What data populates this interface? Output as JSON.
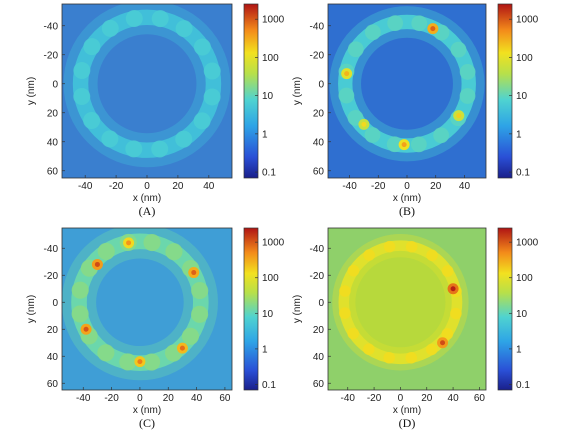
{
  "chart_data": [
    {
      "type": "heatmap",
      "caption": "(A)",
      "xlabel": "x (nm)",
      "ylabel": "y (nm)",
      "xlim": [
        -55,
        55
      ],
      "ylim": [
        65,
        -55
      ],
      "xticks": [
        -40,
        -20,
        0,
        20,
        40
      ],
      "yticks": [
        -40,
        -20,
        0,
        20,
        40,
        60
      ],
      "background_color": "#3a7fcf",
      "ring": {
        "center": [
          0,
          0
        ],
        "radius": 43,
        "width": 10,
        "value": 4,
        "scale": "log"
      },
      "hotspots": [],
      "colorbar": {
        "ticks": [
          "0.1",
          "1",
          "10",
          "100",
          "1000"
        ],
        "range": [
          0.07,
          2500
        ]
      }
    },
    {
      "type": "heatmap",
      "caption": "(B)",
      "xlabel": "x (nm)",
      "ylabel": "y (nm)",
      "xlim": [
        -55,
        55
      ],
      "ylim": [
        65,
        -55
      ],
      "xticks": [
        -40,
        -20,
        0,
        20,
        40
      ],
      "yticks": [
        -40,
        -20,
        0,
        20,
        40,
        60
      ],
      "background_color": "#2f6fd0",
      "ring": {
        "center": [
          0,
          0
        ],
        "radius": 43,
        "width": 10,
        "value": 6,
        "scale": "log"
      },
      "hotspots": [
        {
          "x": 18,
          "y": -38,
          "value": 300
        },
        {
          "x": -42,
          "y": -7,
          "value": 90
        },
        {
          "x": -2,
          "y": 42,
          "value": 120
        },
        {
          "x": 36,
          "y": 22,
          "value": 60
        },
        {
          "x": -30,
          "y": 28,
          "value": 50
        }
      ],
      "colorbar": {
        "ticks": [
          "0.1",
          "1",
          "10",
          "100",
          "1000"
        ],
        "range": [
          0.07,
          2500
        ]
      }
    },
    {
      "type": "heatmap",
      "caption": "(C)",
      "xlabel": "x (nm)",
      "ylabel": "y (nm)",
      "xlim": [
        -55,
        65
      ],
      "ylim": [
        65,
        -55
      ],
      "xticks": [
        -40,
        -20,
        0,
        20,
        40,
        60
      ],
      "yticks": [
        -40,
        -20,
        0,
        20,
        40,
        60
      ],
      "background_color": "#3f9ed6",
      "ring": {
        "center": [
          0,
          0
        ],
        "radius": 43,
        "width": 11,
        "value": 12,
        "scale": "log"
      },
      "hotspots": [
        {
          "x": -30,
          "y": -28,
          "value": 400
        },
        {
          "x": 38,
          "y": -22,
          "value": 300
        },
        {
          "x": -38,
          "y": 20,
          "value": 350
        },
        {
          "x": 30,
          "y": 34,
          "value": 250
        },
        {
          "x": 0,
          "y": 44,
          "value": 200
        },
        {
          "x": -8,
          "y": -44,
          "value": 150
        }
      ],
      "colorbar": {
        "ticks": [
          "0.1",
          "1",
          "10",
          "100",
          "1000"
        ],
        "range": [
          0.07,
          2500
        ]
      }
    },
    {
      "type": "heatmap",
      "caption": "(D)",
      "xlabel": "x (nm)",
      "ylabel": "y (nm)",
      "xlim": [
        -55,
        65
      ],
      "ylim": [
        65,
        -55
      ],
      "xticks": [
        -40,
        -20,
        0,
        20,
        40,
        60
      ],
      "yticks": [
        -40,
        -20,
        0,
        20,
        40,
        60
      ],
      "background_color": "#8fd06a",
      "interior_color": "#b7d93c",
      "ring": {
        "center": [
          0,
          0
        ],
        "radius": 43,
        "width": 8,
        "value": 90,
        "scale": "log"
      },
      "hotspots": [
        {
          "x": 40,
          "y": -10,
          "value": 700
        },
        {
          "x": 32,
          "y": 30,
          "value": 400
        }
      ],
      "colorbar": {
        "ticks": [
          "0.1",
          "1",
          "10",
          "100",
          "1000"
        ],
        "range": [
          0.07,
          2500
        ]
      }
    }
  ]
}
